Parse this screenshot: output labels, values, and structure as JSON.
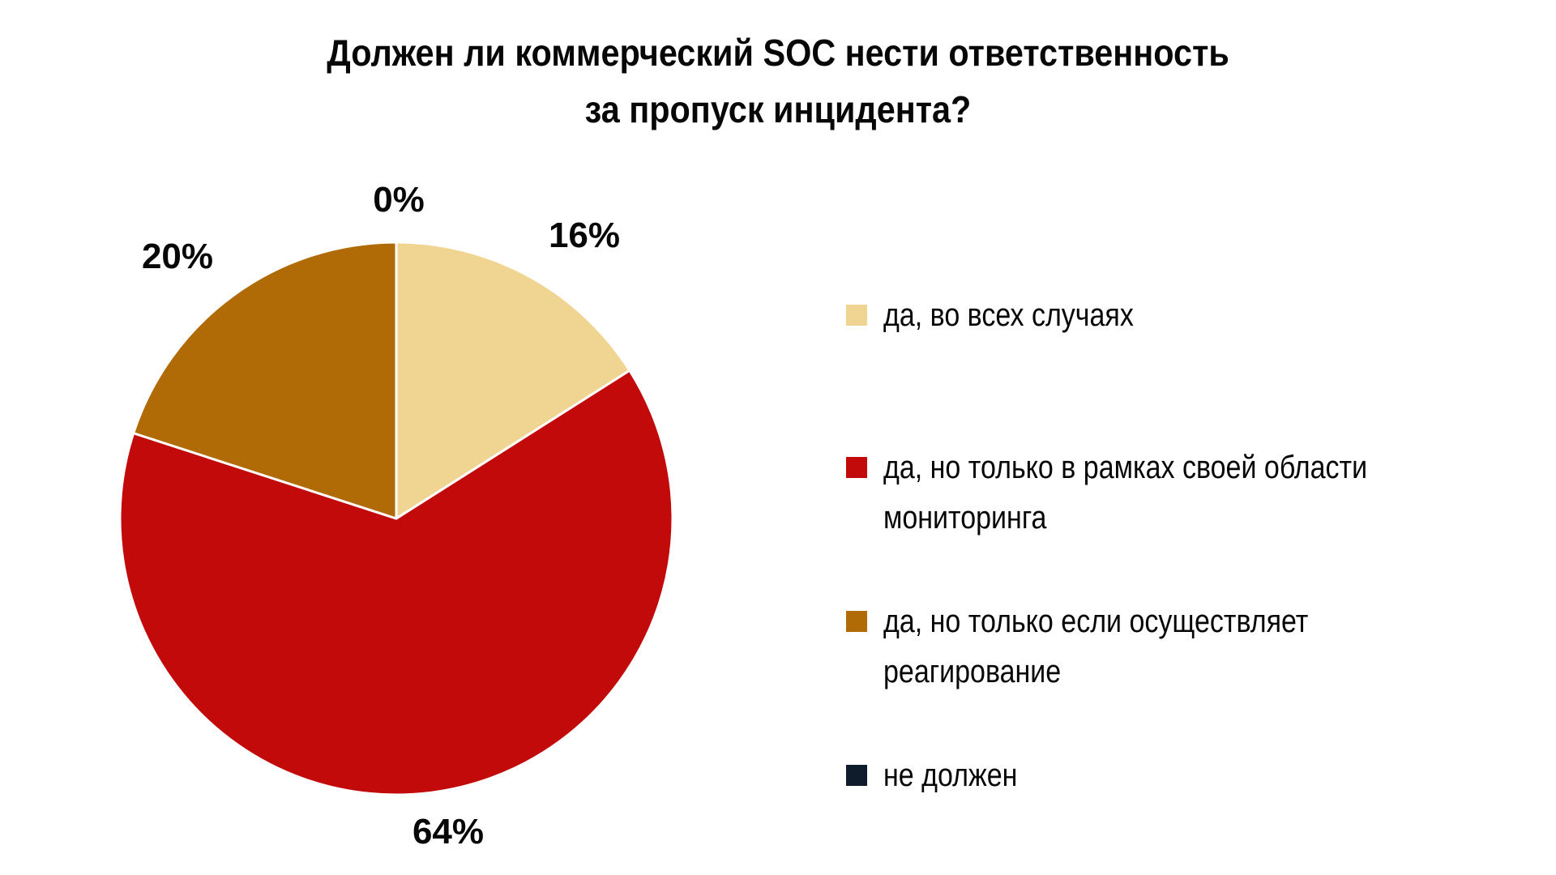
{
  "title": {
    "full": "Должен ли коммерческий SOC нести ответственность за пропуск инцидента?",
    "lines": [
      "Должен ли коммерческий SOC нести ответственность",
      "за пропуск инцидента?"
    ]
  },
  "colors": {
    "background": "#FFFFFF",
    "text": "#070707",
    "slice_separator": "#FFFFFF"
  },
  "chart_data": {
    "type": "pie",
    "title": "Должен ли коммерческий SOC нести ответственность за пропуск инцидента?",
    "direction": "clockwise",
    "start_angle_deg": 0,
    "legend_position": "right",
    "values_unit": "percent",
    "slices": [
      {
        "label": "да, во всех случаях",
        "value": 16,
        "pct_label": "16%",
        "color": "#F0D592"
      },
      {
        "label": "да, но только в рамках своей области мониторинга",
        "value": 64,
        "pct_label": "64%",
        "color": "#C30A0A"
      },
      {
        "label": "да, но только если осуществляет реагирование",
        "value": 20,
        "pct_label": "20%",
        "color": "#B06A06"
      },
      {
        "label": "не должен",
        "value": 0,
        "pct_label": "0%",
        "color": "#0E1C2C"
      }
    ]
  }
}
